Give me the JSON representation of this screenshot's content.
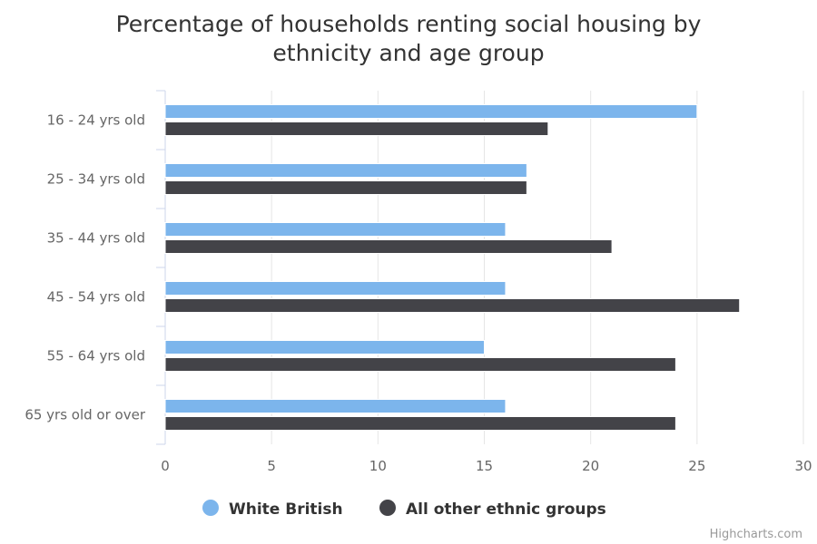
{
  "chart_data": {
    "type": "bar",
    "orientation": "horizontal",
    "title_line1": "Percentage of households renting social housing by",
    "title_line2": "ethnicity and age group",
    "categories": [
      "16 - 24 yrs old",
      "25 - 34 yrs old",
      "35 - 44 yrs old",
      "45 - 54 yrs old",
      "55 - 64 yrs old",
      "65 yrs old or over"
    ],
    "series": [
      {
        "name": "White British",
        "color": "#7cb5ec",
        "values": [
          25,
          17,
          16,
          16,
          15,
          16
        ]
      },
      {
        "name": "All other ethnic groups",
        "color": "#434348",
        "values": [
          18,
          17,
          21,
          27,
          24,
          24
        ]
      }
    ],
    "xlim": [
      0,
      30
    ],
    "ticks": [
      "0",
      "5",
      "10",
      "15",
      "20",
      "25",
      "30"
    ],
    "grid": true,
    "legend_position": "bottom-center"
  },
  "credit": "Highcharts.com"
}
